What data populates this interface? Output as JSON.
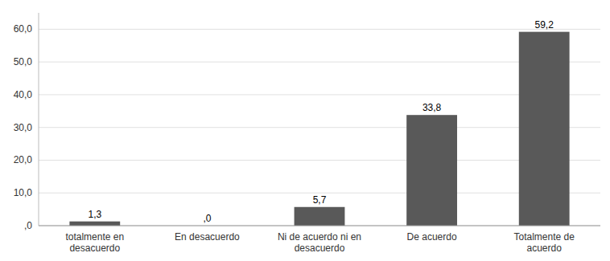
{
  "chart_data": {
    "type": "bar",
    "categories": [
      "totalmente en\ndesacuerdo",
      "En desacuerdo",
      "Ni de acuerdo ni en\ndesacuerdo",
      "De acuerdo",
      "Totalmente de\nacuerdo"
    ],
    "values": [
      1.3,
      0.0,
      5.7,
      33.8,
      59.2
    ],
    "value_labels": [
      "1,3",
      ",0",
      "5,7",
      "33,8",
      "59,2"
    ],
    "color": "#595959",
    "ylim": [
      0,
      65
    ],
    "yticks": [
      {
        "value": 0.0,
        "label": ",0"
      },
      {
        "value": 10.0,
        "label": "10,0"
      },
      {
        "value": 20.0,
        "label": "20,0"
      },
      {
        "value": 30.0,
        "label": "30,0"
      },
      {
        "value": 40.0,
        "label": "40,0"
      },
      {
        "value": 50.0,
        "label": "50,0"
      },
      {
        "value": 60.0,
        "label": "60,0"
      }
    ],
    "grid": true,
    "data_labels": true
  }
}
